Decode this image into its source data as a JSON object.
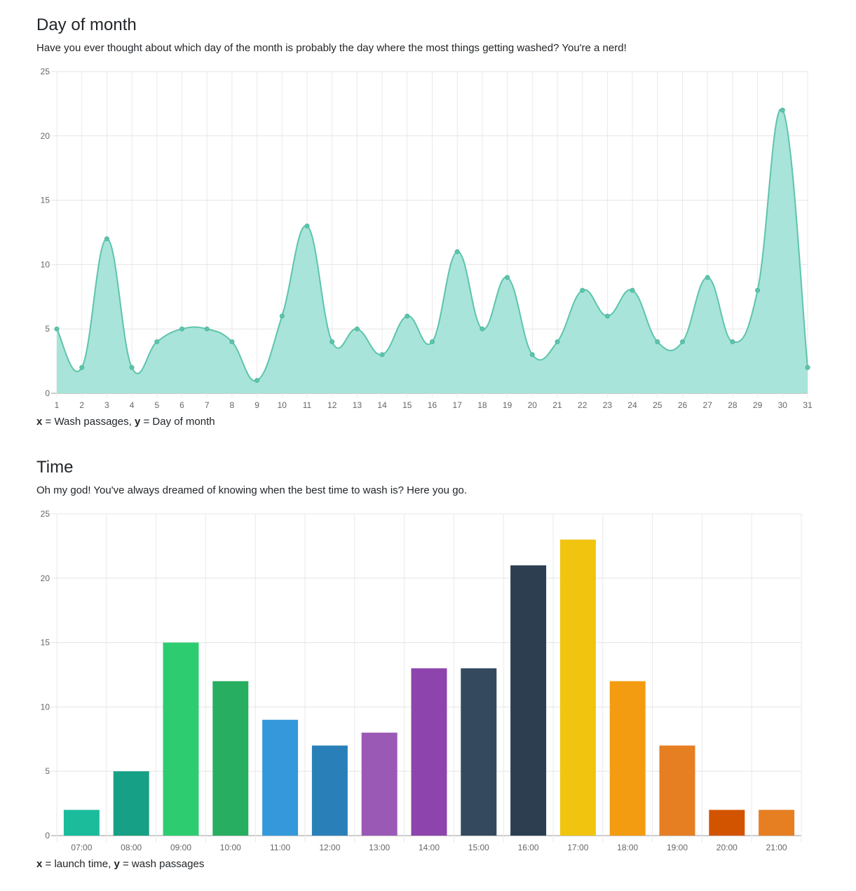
{
  "sections": [
    {
      "title": "Day of month",
      "description": "Have you ever thought about which day of the month is probably the day where the most things getting washed? You're a nerd!",
      "caption": {
        "x_key": "x",
        "x_text": " = Wash passages, ",
        "y_key": "y",
        "y_text": " = Day of month"
      }
    },
    {
      "title": "Time",
      "description": "Oh my god! You've always dreamed of knowing when the best time to wash is? Here you go.",
      "caption": {
        "x_key": "x",
        "x_text": " = launch time, ",
        "y_key": "y",
        "y_text": " = wash passages"
      }
    }
  ],
  "chart_data": [
    {
      "type": "area",
      "title": "Day of month",
      "xlabel": "Day of month",
      "ylabel": "Wash passages",
      "categories": [
        "1",
        "2",
        "3",
        "4",
        "5",
        "6",
        "7",
        "8",
        "9",
        "10",
        "11",
        "12",
        "13",
        "14",
        "15",
        "16",
        "17",
        "18",
        "19",
        "20",
        "21",
        "22",
        "23",
        "24",
        "25",
        "26",
        "27",
        "28",
        "29",
        "30",
        "31"
      ],
      "values": [
        5,
        2,
        12,
        2,
        4,
        5,
        5,
        4,
        1,
        6,
        13,
        4,
        5,
        3,
        6,
        4,
        11,
        5,
        9,
        3,
        4,
        8,
        6,
        8,
        4,
        4,
        9,
        4,
        8,
        22,
        2
      ],
      "ylim": [
        0,
        25
      ],
      "yticks": [
        0,
        5,
        10,
        15,
        20,
        25
      ],
      "grid": true,
      "legend": "none",
      "colors": {
        "line": "#5ec4ac",
        "fill": "#a3e3d7",
        "point": "#5ec4ac"
      }
    },
    {
      "type": "bar",
      "title": "Time",
      "xlabel": "launch time",
      "ylabel": "wash passages",
      "categories": [
        "07:00",
        "08:00",
        "09:00",
        "10:00",
        "11:00",
        "12:00",
        "13:00",
        "14:00",
        "15:00",
        "16:00",
        "17:00",
        "18:00",
        "19:00",
        "20:00",
        "21:00"
      ],
      "values": [
        2,
        5,
        15,
        12,
        9,
        7,
        8,
        13,
        13,
        21,
        23,
        12,
        7,
        2,
        2
      ],
      "colors": [
        "#1abc9c",
        "#16a085",
        "#2ecc71",
        "#27ae60",
        "#3498db",
        "#2980b9",
        "#9b59b6",
        "#8e44ad",
        "#34495e",
        "#2c3e50",
        "#f1c40f",
        "#f39c12",
        "#e67e22",
        "#d35400",
        "#e67e22"
      ],
      "ylim": [
        0,
        25
      ],
      "yticks": [
        0,
        5,
        10,
        15,
        20,
        25
      ],
      "grid": true,
      "legend": "none"
    }
  ]
}
